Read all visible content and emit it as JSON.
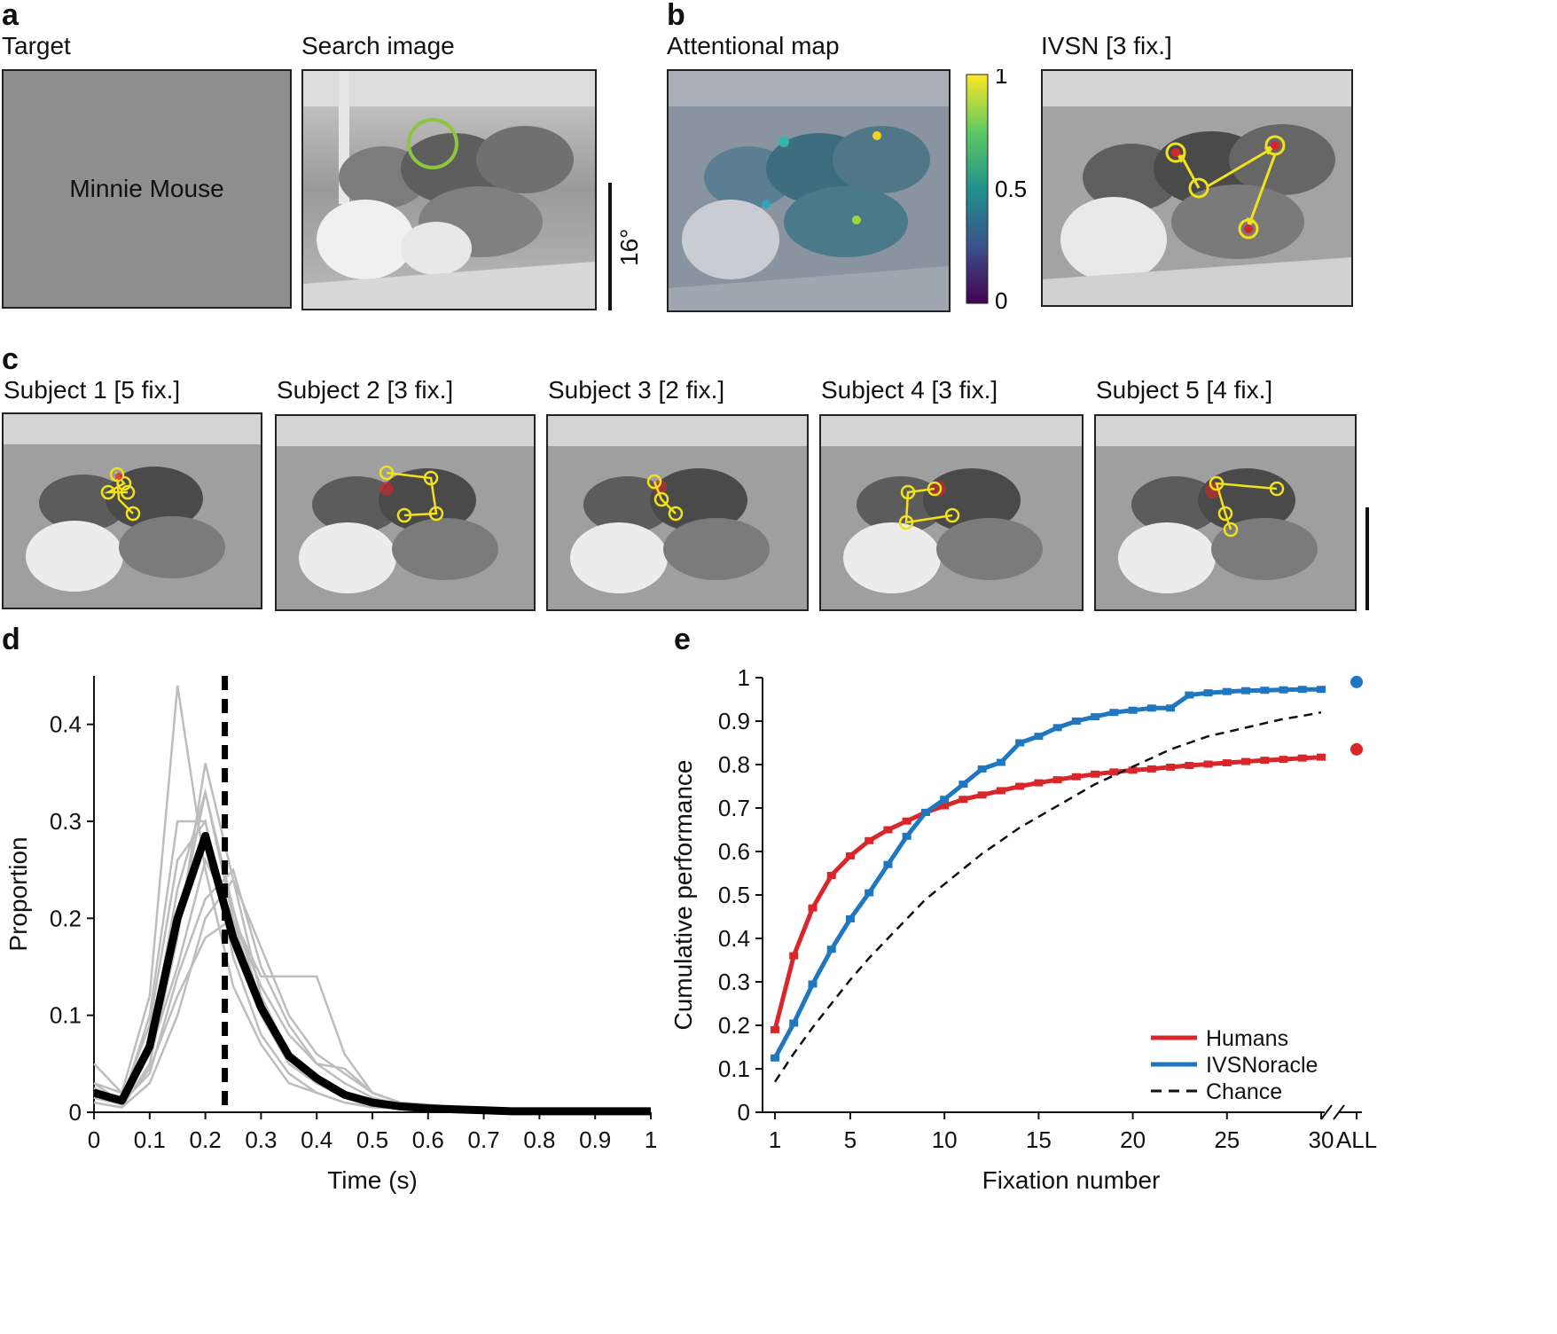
{
  "panel_a": {
    "letter": "a",
    "target_label": "Target",
    "target_name": "Minnie Mouse",
    "search_label": "Search image",
    "scale_label": "16°"
  },
  "panel_b": {
    "letter": "b",
    "attention_label": "Attentional map",
    "ivsn_label": "IVSN [3 fix.]",
    "colorbar_ticks": [
      "1",
      "0.5",
      "0"
    ]
  },
  "panel_c": {
    "letter": "c",
    "subjects": [
      "Subject 1 [5 fix.]",
      "Subject 2 [3 fix.]",
      "Subject 3 [2 fix.]",
      "Subject 4 [3 fix.]",
      "Subject 5 [4 fix.]"
    ]
  },
  "panel_d": {
    "letter": "d"
  },
  "panel_e": {
    "letter": "e"
  },
  "colors": {
    "humans": "#d9262b",
    "ivsn": "#1f77c0",
    "chance": "#111111",
    "fixation": "#f2e21b",
    "circle_green": "#8cc63f",
    "grey_line": "#bdbdbd"
  },
  "chart_data": [
    {
      "type": "line",
      "title": "",
      "xlabel": "Time (s)",
      "ylabel": "Proportion",
      "xlim": [
        0,
        1
      ],
      "ylim": [
        0,
        0.45
      ],
      "xticks": [
        "0",
        "0.1",
        "0.2",
        "0.3",
        "0.4",
        "0.5",
        "0.6",
        "0.7",
        "0.8",
        "0.9",
        "1"
      ],
      "yticks": [
        "0",
        "0.1",
        "0.2",
        "0.3",
        "0.4"
      ],
      "x": [
        0,
        0.05,
        0.1,
        0.15,
        0.2,
        0.25,
        0.3,
        0.35,
        0.4,
        0.45,
        0.5,
        0.55,
        0.6,
        0.65,
        0.7,
        0.75,
        0.8,
        0.85,
        0.9,
        0.95,
        1.0
      ],
      "mean": [
        0.02,
        0.012,
        0.068,
        0.2,
        0.285,
        0.18,
        0.108,
        0.058,
        0.035,
        0.018,
        0.01,
        0.006,
        0.004,
        0.003,
        0.002,
        0.001,
        0.001,
        0.001,
        0.001,
        0.001,
        0.001
      ],
      "subjects": [
        [
          0.05,
          0.02,
          0.12,
          0.44,
          0.25,
          0.13,
          0.07,
          0.03,
          0.02,
          0.01,
          0.005,
          0.004,
          0.003,
          0.002,
          0.001,
          0.001,
          0.001,
          0.001,
          0.001,
          0.001,
          0.001
        ],
        [
          0.03,
          0.01,
          0.07,
          0.23,
          0.33,
          0.21,
          0.11,
          0.05,
          0.03,
          0.015,
          0.008,
          0.005,
          0.003,
          0.002,
          0.002,
          0.001,
          0.001,
          0.001,
          0.001,
          0.001,
          0.001
        ],
        [
          0.01,
          0.005,
          0.05,
          0.18,
          0.36,
          0.24,
          0.12,
          0.06,
          0.03,
          0.02,
          0.01,
          0.006,
          0.004,
          0.003,
          0.002,
          0.001,
          0.001,
          0.001,
          0.001,
          0.001,
          0.001
        ],
        [
          0.02,
          0.015,
          0.09,
          0.26,
          0.3,
          0.17,
          0.1,
          0.05,
          0.03,
          0.015,
          0.008,
          0.005,
          0.003,
          0.002,
          0.001,
          0.001,
          0.001,
          0.001,
          0.001,
          0.001,
          0.001
        ],
        [
          0.015,
          0.01,
          0.04,
          0.14,
          0.22,
          0.25,
          0.15,
          0.09,
          0.05,
          0.03,
          0.015,
          0.008,
          0.005,
          0.003,
          0.002,
          0.001,
          0.001,
          0.001,
          0.001,
          0.001,
          0.001
        ],
        [
          0.03,
          0.02,
          0.06,
          0.15,
          0.26,
          0.2,
          0.14,
          0.14,
          0.14,
          0.06,
          0.02,
          0.01,
          0.005,
          0.003,
          0.002,
          0.001,
          0.001,
          0.001,
          0.001,
          0.001,
          0.001
        ],
        [
          0.01,
          0.005,
          0.03,
          0.1,
          0.2,
          0.24,
          0.17,
          0.1,
          0.06,
          0.04,
          0.02,
          0.01,
          0.006,
          0.004,
          0.002,
          0.001,
          0.001,
          0.001,
          0.001,
          0.001,
          0.001
        ],
        [
          0.02,
          0.01,
          0.1,
          0.3,
          0.3,
          0.16,
          0.08,
          0.04,
          0.02,
          0.01,
          0.006,
          0.004,
          0.003,
          0.002,
          0.001,
          0.001,
          0.001,
          0.001,
          0.001,
          0.001,
          0.001
        ],
        [
          0.025,
          0.012,
          0.06,
          0.19,
          0.33,
          0.2,
          0.1,
          0.055,
          0.03,
          0.02,
          0.012,
          0.01,
          0.008,
          0.005,
          0.002,
          0.001,
          0.001,
          0.001,
          0.001,
          0.001,
          0.001
        ],
        [
          0.015,
          0.008,
          0.045,
          0.12,
          0.18,
          0.2,
          0.13,
          0.08,
          0.05,
          0.045,
          0.02,
          0.01,
          0.006,
          0.004,
          0.002,
          0.001,
          0.001,
          0.001,
          0.001,
          0.001,
          0.001
        ]
      ],
      "threshold_x": 0.235
    },
    {
      "type": "line",
      "title": "",
      "xlabel": "Fixation number",
      "ylabel": "Cumulative performance",
      "xlim": [
        1,
        30
      ],
      "ylim": [
        0,
        1
      ],
      "xticks": [
        "1",
        "5",
        "10",
        "15",
        "20",
        "25",
        "30",
        "ALL"
      ],
      "yticks": [
        "0",
        "0.1",
        "0.2",
        "0.3",
        "0.4",
        "0.5",
        "0.6",
        "0.7",
        "0.8",
        "0.9",
        "1"
      ],
      "x": [
        1,
        2,
        3,
        4,
        5,
        6,
        7,
        8,
        9,
        10,
        11,
        12,
        13,
        14,
        15,
        16,
        17,
        18,
        19,
        20,
        21,
        22,
        23,
        24,
        25,
        26,
        27,
        28,
        29,
        30
      ],
      "series": [
        {
          "name": "Humans",
          "values": [
            0.19,
            0.36,
            0.47,
            0.545,
            0.59,
            0.625,
            0.65,
            0.67,
            0.69,
            0.705,
            0.72,
            0.73,
            0.74,
            0.75,
            0.758,
            0.765,
            0.772,
            0.778,
            0.783,
            0.787,
            0.79,
            0.794,
            0.798,
            0.801,
            0.804,
            0.807,
            0.81,
            0.812,
            0.815,
            0.817
          ],
          "all": 0.835
        },
        {
          "name": "IVSNoracle",
          "values": [
            0.125,
            0.205,
            0.295,
            0.375,
            0.445,
            0.505,
            0.57,
            0.635,
            0.69,
            0.72,
            0.755,
            0.79,
            0.805,
            0.85,
            0.865,
            0.885,
            0.9,
            0.91,
            0.92,
            0.925,
            0.93,
            0.93,
            0.96,
            0.965,
            0.968,
            0.97,
            0.971,
            0.972,
            0.973,
            0.973
          ],
          "all": 0.99
        },
        {
          "name": "Chance",
          "values": [
            0.07,
            0.135,
            0.195,
            0.25,
            0.305,
            0.355,
            0.4,
            0.445,
            0.49,
            0.525,
            0.56,
            0.595,
            0.625,
            0.655,
            0.68,
            0.705,
            0.73,
            0.755,
            0.775,
            0.795,
            0.815,
            0.835,
            0.85,
            0.865,
            0.875,
            0.885,
            0.895,
            0.905,
            0.912,
            0.92
          ]
        }
      ],
      "legend_location": "lower-right"
    }
  ]
}
